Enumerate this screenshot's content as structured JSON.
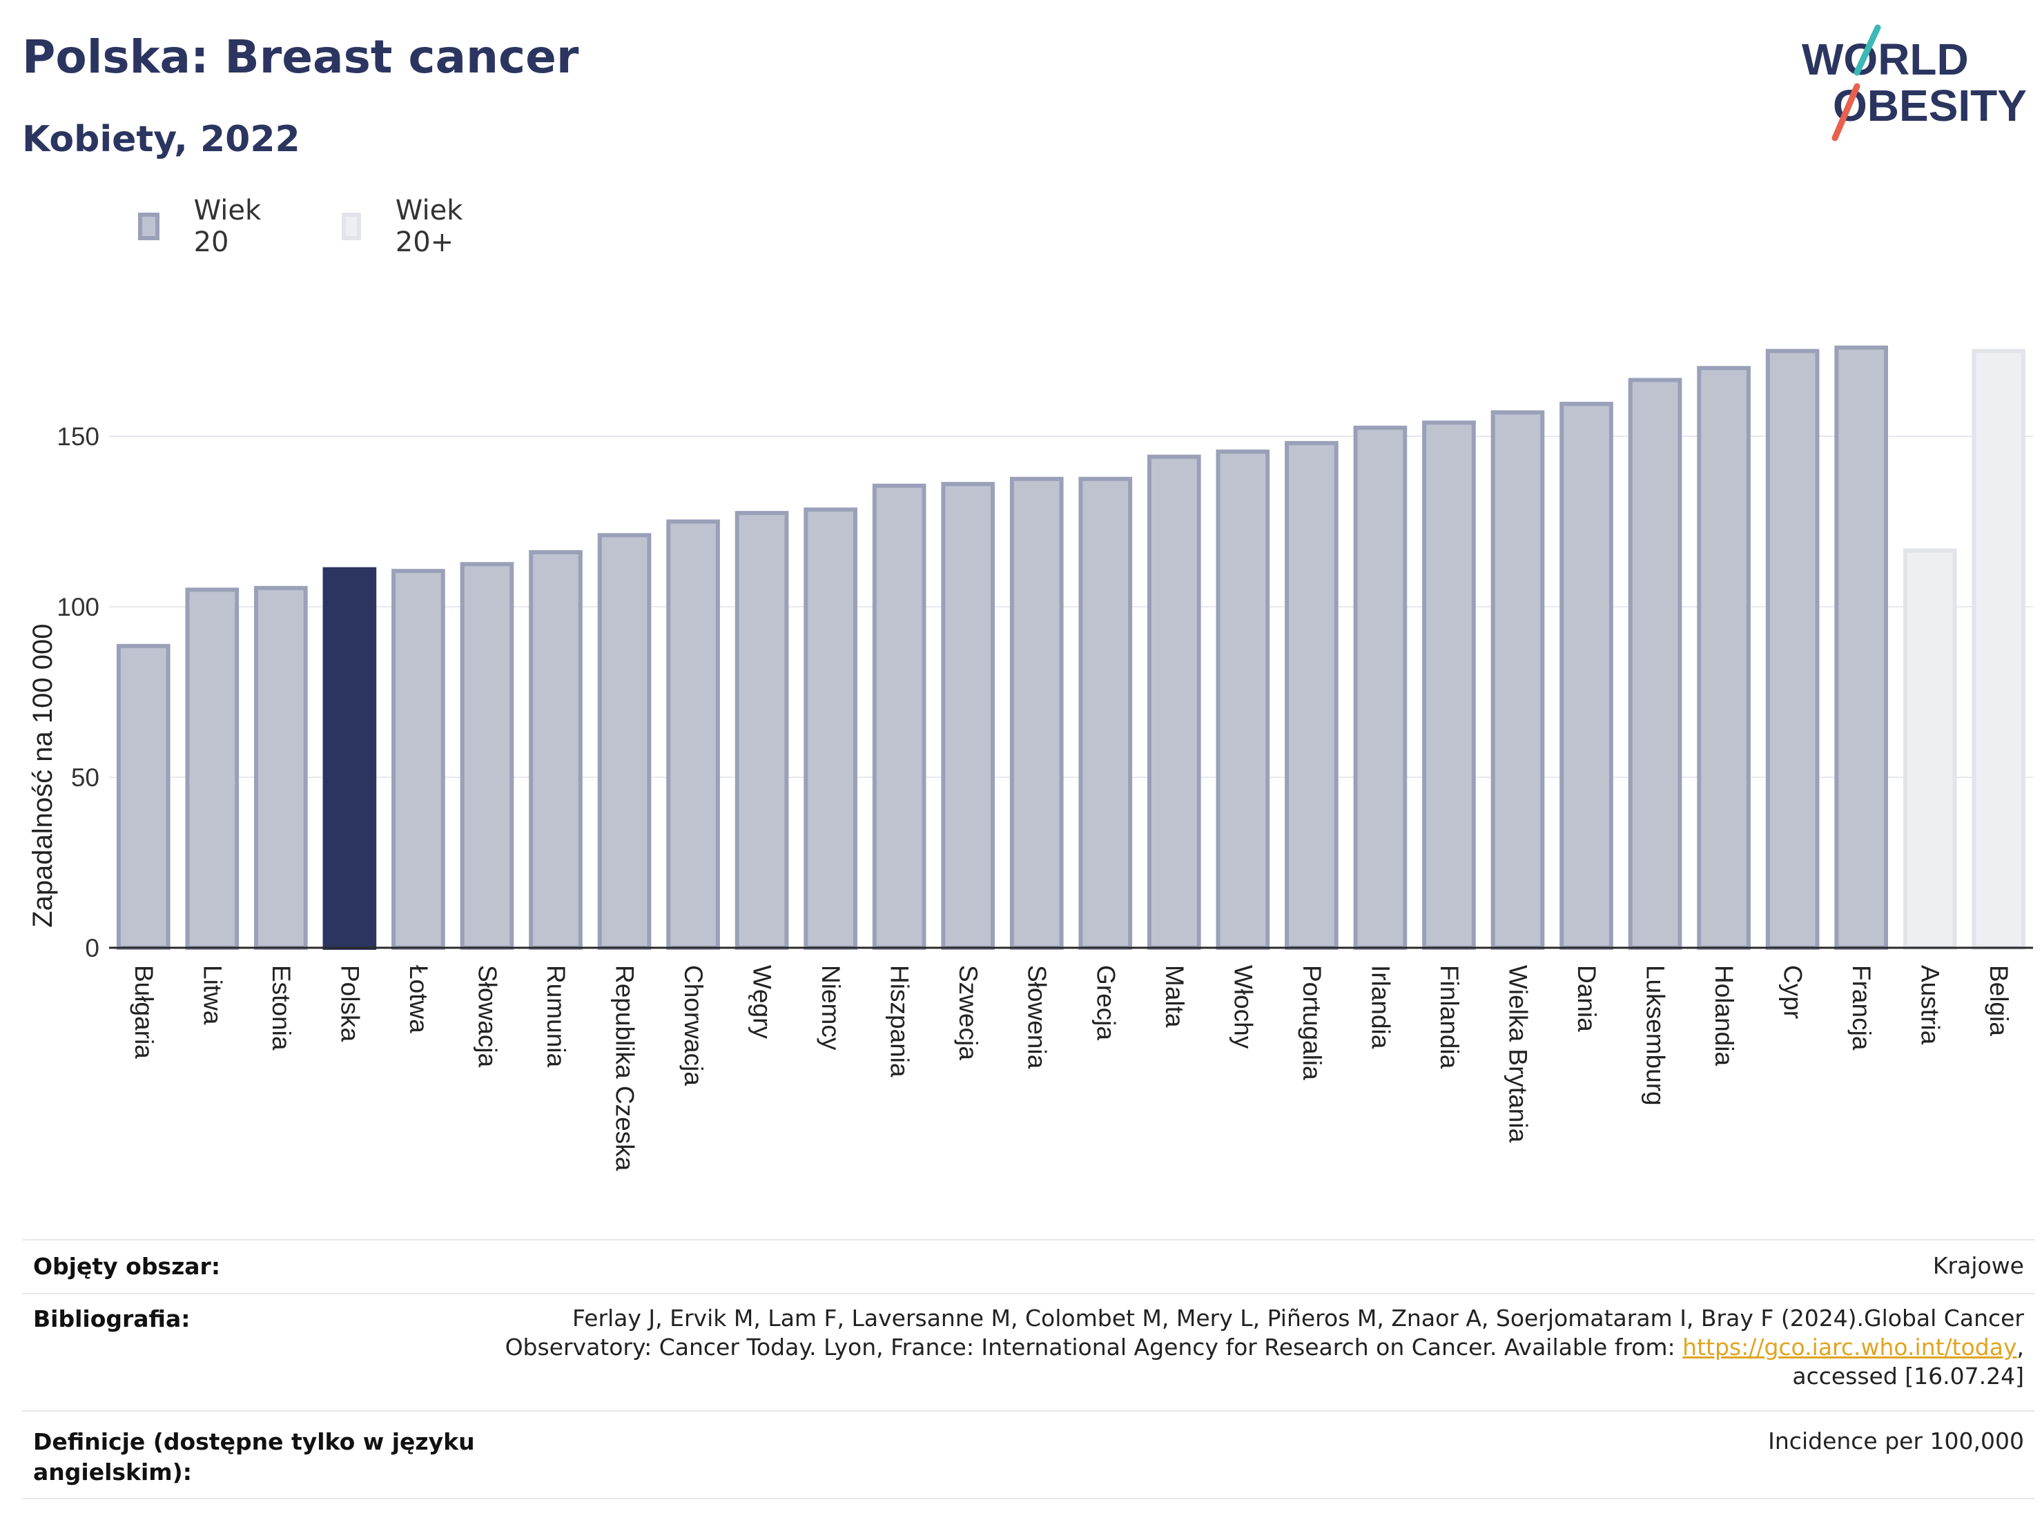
{
  "header": {
    "title": "Polska: Breast cancer",
    "subtitle": "Kobiety, 2022"
  },
  "logo": {
    "line1": "WORLD",
    "line2": "OBESITY",
    "accent_colors": [
      "#3bb9b4",
      "#e8614e"
    ],
    "text_color": "#2b3560"
  },
  "legend": {
    "items": [
      {
        "label": "Wiek 20",
        "fill": "#bfc3d0",
        "stroke": "#9aa0b8"
      },
      {
        "label": "Wiek 20+",
        "fill": "#eeeff3",
        "stroke": "#e2e4ea"
      }
    ]
  },
  "colors": {
    "bar_fill": "#bfc3d0",
    "bar_stroke": "#9aa0b8",
    "highlight": "#2b3560",
    "light_fill": "#eeeff3",
    "light_stroke": "#e2e4ea",
    "grid": "#e7e9ee",
    "axis": "#2b2b2b"
  },
  "chart_data": {
    "type": "bar",
    "title": "Polska: Breast cancer",
    "subtitle": "Kobiety, 2022",
    "ylabel": "Zapadalność na 100 000",
    "xlabel": "",
    "ylim": [
      0,
      190
    ],
    "yticks": [
      0,
      50,
      100,
      150
    ],
    "grid": true,
    "legend_position": "top-left",
    "highlight_category": "Polska",
    "categories": [
      "Bułgaria",
      "Litwa",
      "Estonia",
      "Polska",
      "Łotwa",
      "Słowacja",
      "Rumunia",
      "Republika Czeska",
      "Chorwacja",
      "Węgry",
      "Niemcy",
      "Hiszpania",
      "Szwecja",
      "Słowenia",
      "Grecja",
      "Malta",
      "Włochy",
      "Portugalia",
      "Irlandia",
      "Finlandia",
      "Wielka Brytania",
      "Dania",
      "Luksemburg",
      "Holandia",
      "Cypr",
      "Francja",
      "Austria",
      "Belgia"
    ],
    "values": [
      88.5,
      105,
      105.5,
      111,
      110.5,
      112.5,
      116,
      121,
      125,
      127.5,
      128.5,
      135.5,
      136,
      137.5,
      137.5,
      144,
      145.5,
      148,
      152.5,
      154,
      157,
      159.5,
      166.5,
      170,
      175,
      176,
      116.5,
      175
    ],
    "series_group": [
      "Wiek 20",
      "Wiek 20",
      "Wiek 20",
      "Wiek 20",
      "Wiek 20",
      "Wiek 20",
      "Wiek 20",
      "Wiek 20",
      "Wiek 20",
      "Wiek 20",
      "Wiek 20",
      "Wiek 20",
      "Wiek 20",
      "Wiek 20",
      "Wiek 20",
      "Wiek 20",
      "Wiek 20",
      "Wiek 20",
      "Wiek 20",
      "Wiek 20",
      "Wiek 20",
      "Wiek 20",
      "Wiek 20",
      "Wiek 20",
      "Wiek 20",
      "Wiek 20",
      "Wiek 20+",
      "Wiek 20+"
    ]
  },
  "metadata": {
    "rows": [
      {
        "label": "Objęty obszar:",
        "value": "Krajowe"
      },
      {
        "label": "Bibliografia:",
        "value_line1": "Ferlay J, Ervik M, Lam F, Laversanne M, Colombet M, Mery L, Piñeros M, Znaor A, Soerjomataram I, Bray F (2024).Global Cancer",
        "value_line2_prefix": "Observatory: Cancer Today. Lyon, France: International Agency for Research on Cancer. Available from: ",
        "link_text": "https://gco.iarc.who.int/today",
        "value_line2_suffix": ",",
        "value_line3": "accessed [16.07.24]"
      },
      {
        "label_line1": "Definicje (dostępne tylko w języku",
        "label_line2": "angielskim):",
        "value": "Incidence per 100,000"
      }
    ]
  }
}
